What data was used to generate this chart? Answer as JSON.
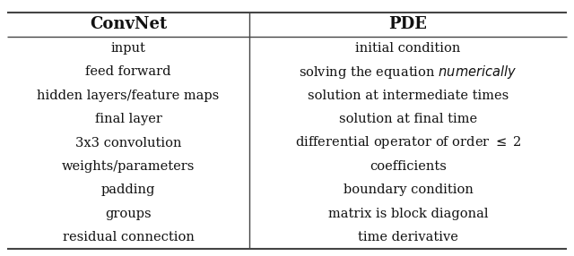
{
  "col1_header": "ConvNet",
  "col2_header": "PDE",
  "rows": [
    [
      "input",
      "initial condition"
    ],
    [
      "feed forward",
      "solving the equation {\\it numerically}"
    ],
    [
      "hidden layers/feature maps",
      "solution at intermediate times"
    ],
    [
      "final layer",
      "solution at final time"
    ],
    [
      "3x3 convolution",
      "differential operator of order $\\leq$ 2"
    ],
    [
      "weights/parameters",
      "coefficients"
    ],
    [
      "padding",
      "boundary condition"
    ],
    [
      "groups",
      "matrix is block diagonal"
    ],
    [
      "residual connection",
      "time derivative"
    ]
  ],
  "bg_color": "#ffffff",
  "text_color": "#111111",
  "line_color": "#444444",
  "font_size": 10.5,
  "header_font_size": 13.0,
  "fig_width": 6.4,
  "fig_height": 2.86,
  "dpi": 100
}
